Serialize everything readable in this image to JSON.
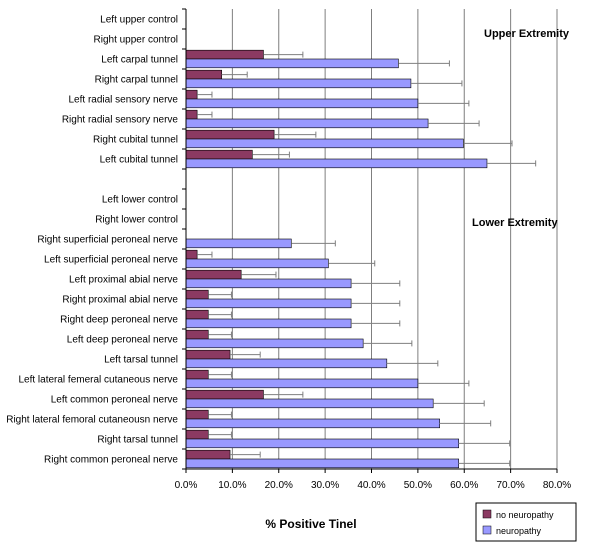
{
  "chart_data": {
    "type": "bar",
    "orientation": "horizontal",
    "xlabel": "% Positive Tinel",
    "xlim": [
      0,
      80
    ],
    "xticks": [
      "0.0%",
      "10.0%",
      "20.0%",
      "30.0%",
      "40.0%",
      "50.0%",
      "60.0%",
      "70.0%",
      "80.0%"
    ],
    "grid": "vertical",
    "legend_position": "bottom-right",
    "annotations": [
      "Upper Extremity",
      "Lower Extremity"
    ],
    "categories": [
      "Left upper control",
      "Right upper control",
      "Left carpal tunnel",
      "Right carpal tunnel",
      "Left radial sensory nerve",
      "Right radial sensory nerve",
      "Right cubital tunnel",
      "Left cubital tunnel",
      "",
      "Left lower control",
      "Right lower control",
      "Right superficial peroneal nerve",
      "Left superficial peroneal nerve",
      "Left proximal abial nerve",
      "Right proximal abial nerve",
      "Right deep peroneal nerve",
      "Left deep peroneal nerve",
      "Left tarsal tunnel",
      "Left lateral femeral cutaneous nerve",
      "Left common peroneal nerve",
      "Right lateral femoral cutaneousn nerve",
      "Right tarsal tunnel",
      "Right common peroneal nerve"
    ],
    "series": [
      {
        "name": "no neuropathy",
        "color": "#8b3a62",
        "values": [
          0,
          0,
          16.7,
          7.7,
          2.4,
          2.4,
          19.0,
          14.3,
          null,
          0,
          0,
          0,
          2.4,
          11.9,
          4.8,
          4.8,
          4.8,
          9.5,
          4.8,
          16.7,
          4.8,
          4.8,
          9.5
        ],
        "error": [
          0,
          0,
          8.5,
          5.5,
          3.2,
          3.2,
          9.0,
          8.0,
          null,
          0,
          0,
          0,
          3.2,
          7.5,
          5.0,
          5.0,
          5.0,
          6.5,
          5.0,
          8.5,
          5.0,
          5.0,
          6.5
        ]
      },
      {
        "name": "neuropathy",
        "color": "#9999ff",
        "values": [
          0,
          0,
          45.8,
          48.5,
          50.0,
          52.2,
          59.8,
          64.9,
          null,
          0,
          0,
          22.7,
          30.7,
          35.6,
          35.6,
          35.6,
          38.2,
          43.3,
          50.0,
          53.3,
          54.7,
          58.8,
          58.8
        ],
        "error": [
          0,
          0,
          11.0,
          11.0,
          11.0,
          11.0,
          10.5,
          10.5,
          null,
          0,
          0,
          9.5,
          10.0,
          10.5,
          10.5,
          10.5,
          10.5,
          11.0,
          11.0,
          11.0,
          11.0,
          11.0,
          11.0
        ]
      }
    ]
  }
}
